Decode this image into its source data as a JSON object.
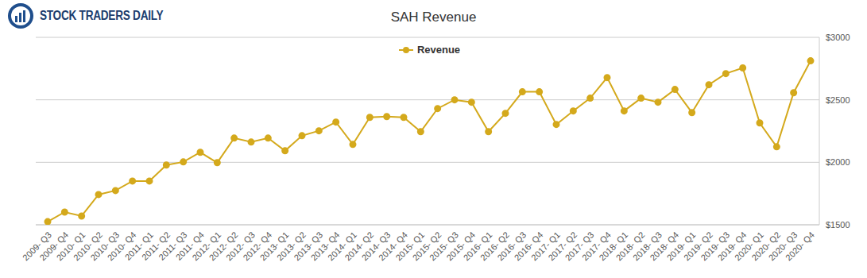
{
  "chart_data": {
    "type": "line",
    "title": "SAH Revenue",
    "annotations": [
      "STOCK TRADERS DAILY"
    ],
    "categories": [
      "2009- Q3",
      "2009- Q4",
      "2010- Q1",
      "2010- Q2",
      "2010- Q3",
      "2010- Q4",
      "2011- Q1",
      "2011- Q2",
      "2011- Q3",
      "2011- Q4",
      "2012- Q1",
      "2012- Q2",
      "2012- Q3",
      "2012- Q4",
      "2013- Q1",
      "2013- Q2",
      "2013- Q3",
      "2013- Q4",
      "2014- Q1",
      "2014- Q2",
      "2014- Q3",
      "2014- Q4",
      "2015- Q1",
      "2015- Q2",
      "2015- Q3",
      "2015- Q4",
      "2016- Q1",
      "2016- Q2",
      "2016- Q3",
      "2016- Q4",
      "2017- Q1",
      "2017- Q2",
      "2017- Q3",
      "2017- Q4",
      "2018- Q1",
      "2018- Q2",
      "2018- Q3",
      "2018- Q4",
      "2019- Q1",
      "2019- Q2",
      "2019- Q3",
      "2019- Q4",
      "2020- Q1",
      "2020- Q2",
      "2020- Q3",
      "2020- Q4"
    ],
    "series": [
      {
        "name": "Revenue",
        "color": "#d4a91c",
        "marker": "circle",
        "values": [
          1525,
          1602,
          1570,
          1742,
          1774,
          1850,
          1850,
          1978,
          2003,
          2080,
          1997,
          2194,
          2162,
          2194,
          2092,
          2213,
          2252,
          2322,
          2143,
          2360,
          2366,
          2360,
          2245,
          2430,
          2500,
          2481,
          2245,
          2392,
          2564,
          2564,
          2303,
          2411,
          2513,
          2678,
          2411,
          2513,
          2481,
          2583,
          2398,
          2621,
          2710,
          2755,
          2315,
          2124,
          2557,
          2812
        ]
      }
    ],
    "ylim": [
      1500,
      3000
    ],
    "yticks": [
      {
        "value": 1500,
        "label": "$1500"
      },
      {
        "value": 2000,
        "label": "$2000"
      },
      {
        "value": 2500,
        "label": "$2500"
      },
      {
        "value": 3000,
        "label": "$3000"
      }
    ],
    "grid": true,
    "legend": "top"
  }
}
